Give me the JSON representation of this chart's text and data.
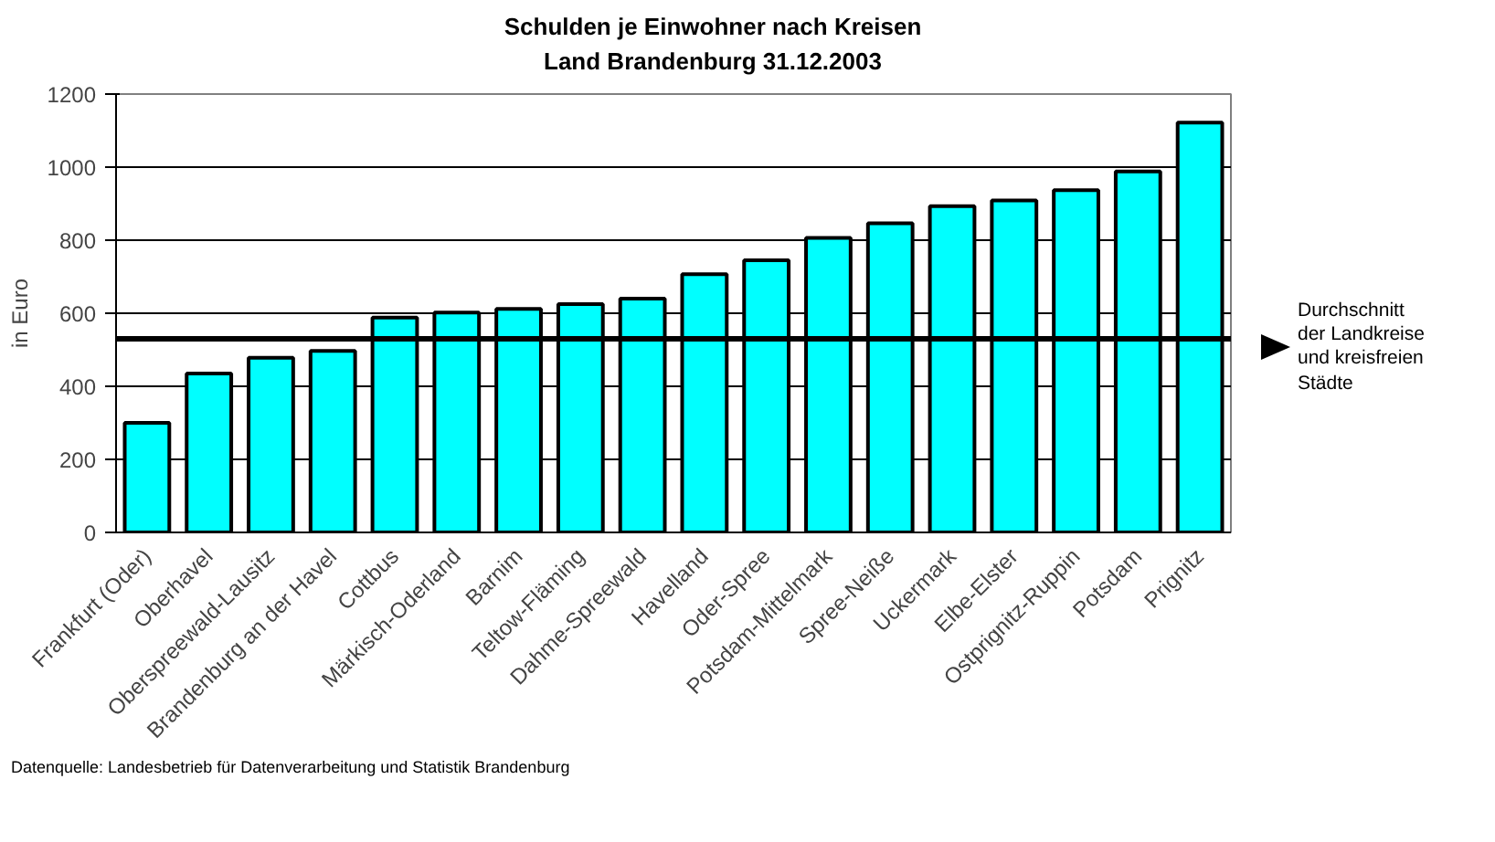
{
  "chart_data": {
    "type": "bar",
    "title": "Schulden je Einwohner nach Kreisen\nLand Brandenburg 31.12.2003",
    "ylabel": "in Euro",
    "categories": [
      "Frankfurt (Oder)",
      "Oberhavel",
      "Oberspreewald-Lausitz",
      "Brandenburg an der Havel",
      "Cottbus",
      "Märkisch-Oderland",
      "Barnim",
      "Teltow-Fläming",
      "Dahme-Spreewald",
      "Havelland",
      "Oder-Spree",
      "Potsdam-Mittelmark",
      "Spree-Neiße",
      "Uckermark",
      "Elbe-Elster",
      "Ostprignitz-Ruppin",
      "Potsdam",
      "Prignitz"
    ],
    "values": [
      300,
      435,
      478,
      497,
      588,
      602,
      612,
      625,
      640,
      707,
      745,
      806,
      846,
      893,
      909,
      937,
      988,
      1122
    ],
    "color": "#00ffff",
    "ylim": [
      0,
      1200
    ],
    "yticks": [
      0,
      200,
      400,
      600,
      800,
      1000,
      1200
    ],
    "grid": "y",
    "ref_lines": [
      {
        "axis": "y",
        "value": 530,
        "label": "Durchschnitt\nder Landkreise\nund kreisfreien\nStädte",
        "color": "#000000"
      }
    ],
    "annotations": [
      "Datenquelle: Landesbetrieb für Datenverarbeitung und Statistik Brandenburg"
    ]
  }
}
